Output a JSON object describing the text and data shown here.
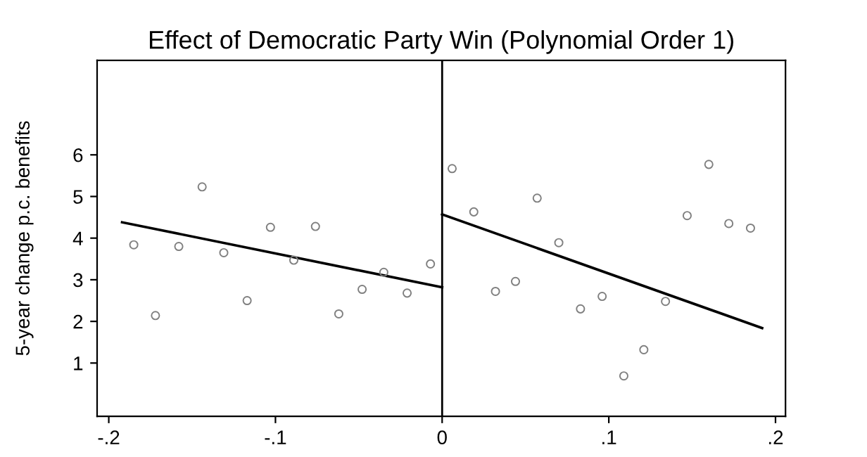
{
  "chart_data": {
    "type": "scatter",
    "title": "Effect of Democratic Party Win (Polynomial Order 1)",
    "ylabel": "5-year change p.c. benefits",
    "xlim": [
      -0.207,
      0.206
    ],
    "ylim": [
      -0.28,
      8.27
    ],
    "xticks": [
      {
        "value": -0.2,
        "label": "-.2"
      },
      {
        "value": -0.1,
        "label": "-.1"
      },
      0,
      {
        "value": 0.1,
        "label": ".1"
      },
      {
        "value": 0.2,
        "label": ".2"
      }
    ],
    "yticks": [
      1,
      2,
      3,
      4,
      5,
      6
    ],
    "grid": false,
    "legend": false,
    "ref_lines": [
      {
        "axis": "x",
        "value": 0,
        "color": "#000000"
      }
    ],
    "series": [
      {
        "marker": "circle",
        "color": "#808080",
        "x": [
          -0.185,
          -0.172,
          -0.158,
          -0.144,
          -0.131,
          -0.117,
          -0.103,
          -0.089,
          -0.076,
          -0.062,
          -0.048,
          -0.035,
          -0.021,
          -0.007
        ],
        "values": [
          3.84,
          2.14,
          3.8,
          5.23,
          3.65,
          2.5,
          4.26,
          3.47,
          4.28,
          2.18,
          2.77,
          3.18,
          2.68,
          3.38
        ]
      },
      {
        "marker": "circle",
        "color": "#808080",
        "x": [
          0.006,
          0.019,
          0.032,
          0.044,
          0.057,
          0.07,
          0.083,
          0.096,
          0.109,
          0.121,
          0.134,
          0.147,
          0.16,
          0.172,
          0.185
        ],
        "values": [
          5.67,
          4.63,
          2.72,
          2.96,
          4.96,
          3.89,
          2.3,
          2.6,
          0.69,
          1.32,
          2.48,
          4.54,
          5.77,
          4.35,
          4.24
        ]
      },
      {
        "type": "line",
        "marker": "none",
        "color": "#000000",
        "x": [
          -0.192,
          0
        ],
        "values": [
          4.38,
          2.82
        ]
      },
      {
        "type": "line",
        "marker": "none",
        "color": "#000000",
        "x": [
          0,
          0.192
        ],
        "values": [
          4.57,
          1.84
        ]
      }
    ]
  }
}
